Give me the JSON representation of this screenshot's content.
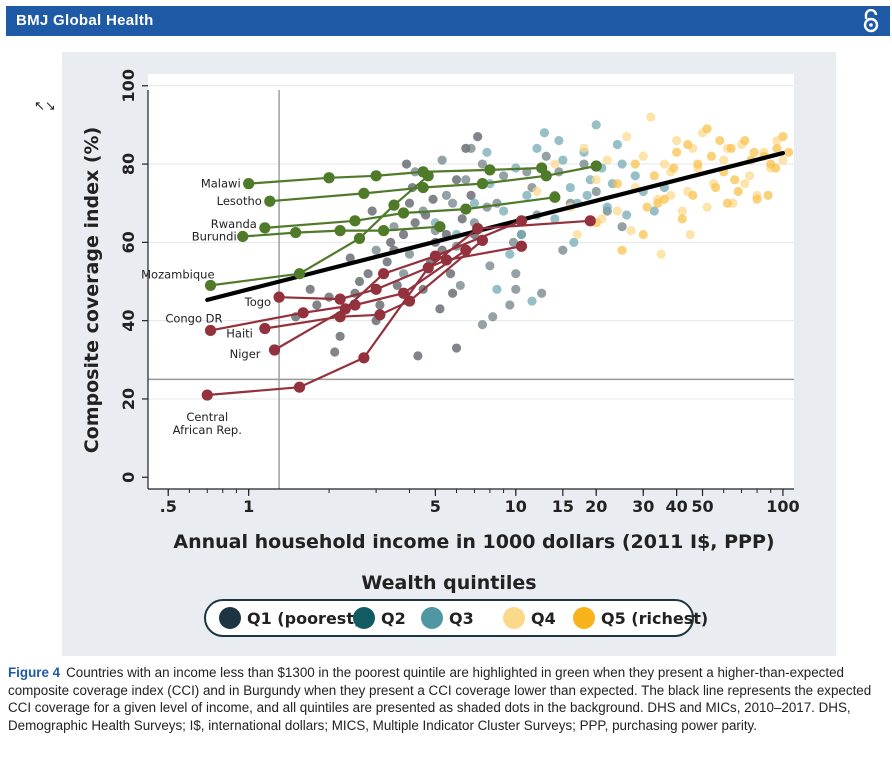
{
  "header": {
    "journal": "BMJ Global Health",
    "open_access_icon": "open-access-lock-icon"
  },
  "resize_icon": "resize-arrows-icon",
  "caption": {
    "label": "Figure 4",
    "text": "Countries with an income less than $1300 in the poorest quintile are highlighted in green when they present a higher-than-expected composite coverage index (CCI) and in Burgundy when they present a CCI coverage lower than expected. The black line represents the expected CCI coverage for a given level of income, and all quintiles are presented as shaded dots in the background. DHS and MICs, 2010–2017. DHS, Demographic Health Surveys; I$, international dollars; MICS, Multiple Indicator Cluster Surveys; PPP, purchasing power parity."
  },
  "chart_data": {
    "type": "scatter",
    "xlabel": "Annual household income in 1000 dollars (2011 I$, PPP)",
    "ylabel": "Composite coverage index (%)",
    "x_scale": "log",
    "xlim": [
      0.42,
      110
    ],
    "ylim": [
      -3,
      103
    ],
    "x_ticks": [
      {
        "v": 0.5,
        "label": ".5"
      },
      {
        "v": 1,
        "label": "1"
      },
      {
        "v": 5,
        "label": "5"
      },
      {
        "v": 10,
        "label": "10"
      },
      {
        "v": 15,
        "label": "15"
      },
      {
        "v": 20,
        "label": "20"
      },
      {
        "v": 30,
        "label": "30"
      },
      {
        "v": 40,
        "label": "40"
      },
      {
        "v": 50,
        "label": "50"
      },
      {
        "v": 100,
        "label": "100"
      }
    ],
    "y_ticks": [
      0,
      20,
      40,
      60,
      80,
      100
    ],
    "grid": true,
    "reference_lines": {
      "x": 1.3,
      "y": 25
    },
    "expected_line": {
      "x": [
        0.7,
        100
      ],
      "y": [
        45.3,
        82.8
      ]
    },
    "legend": {
      "title": "Wealth quintiles",
      "placement": "bottom",
      "items": [
        {
          "label": "Q1 (poorest)",
          "color": "#1c3540"
        },
        {
          "label": "Q2",
          "color": "#135b63"
        },
        {
          "label": "Q3",
          "color": "#4f97a3"
        },
        {
          "label": "Q4",
          "color": "#fcd98a"
        },
        {
          "label": "Q5 (richest)",
          "color": "#f8b21c"
        }
      ]
    },
    "colors": {
      "green": "#4f7a29",
      "burgundy": "#93313c",
      "expected": "#000000",
      "refline": "#999999"
    },
    "highlighted_countries": [
      {
        "name": "Malawi",
        "group": "green",
        "points": [
          [
            1.0,
            75
          ],
          [
            2.0,
            76.5
          ],
          [
            3.0,
            77
          ],
          [
            4.5,
            78
          ],
          [
            8,
            78.5
          ],
          [
            12.5,
            79
          ]
        ]
      },
      {
        "name": "Lesotho",
        "group": "green",
        "points": [
          [
            1.2,
            70.5
          ],
          [
            2.7,
            72.5
          ],
          [
            4.5,
            74
          ],
          [
            7.5,
            75
          ],
          [
            13,
            77
          ],
          [
            20,
            79.5
          ]
        ]
      },
      {
        "name": "Rwanda",
        "group": "green",
        "points": [
          [
            1.15,
            63.7
          ],
          [
            2.5,
            65.5
          ],
          [
            3.8,
            67.5
          ],
          [
            6.5,
            68.5
          ],
          [
            14,
            71.5
          ]
        ]
      },
      {
        "name": "Burundi",
        "group": "green",
        "points": [
          [
            0.95,
            61.5
          ],
          [
            1.5,
            62.5
          ],
          [
            2.2,
            63
          ],
          [
            3.2,
            63
          ],
          [
            5.2,
            64
          ]
        ]
      },
      {
        "name": "Mozambique",
        "group": "green",
        "points": [
          [
            0.72,
            49
          ],
          [
            1.55,
            52
          ],
          [
            2.6,
            61
          ],
          [
            3.5,
            69.5
          ],
          [
            4.7,
            77
          ]
        ]
      },
      {
        "name": "Togo",
        "group": "burgundy",
        "points": [
          [
            1.3,
            46
          ],
          [
            2.2,
            45.5
          ],
          [
            3.0,
            48
          ],
          [
            5.5,
            55.5
          ],
          [
            10.5,
            59
          ]
        ]
      },
      {
        "name": "Congo DR",
        "group": "burgundy",
        "points": [
          [
            0.72,
            37.5
          ],
          [
            1.6,
            42
          ],
          [
            2.5,
            44
          ],
          [
            3.8,
            47
          ],
          [
            6.5,
            58
          ]
        ]
      },
      {
        "name": "Haiti",
        "group": "burgundy",
        "points": [
          [
            1.15,
            38
          ],
          [
            2.2,
            41
          ],
          [
            3.1,
            41.5
          ],
          [
            4.0,
            45
          ],
          [
            7.5,
            60.5
          ]
        ]
      },
      {
        "name": "Niger",
        "group": "burgundy",
        "points": [
          [
            1.25,
            32.5
          ],
          [
            2.3,
            43
          ],
          [
            3.2,
            52
          ],
          [
            5.0,
            56.5
          ],
          [
            10.5,
            65.5
          ]
        ]
      },
      {
        "name": "Central African Rep.",
        "group": "burgundy",
        "points": [
          [
            0.7,
            21
          ],
          [
            1.55,
            23
          ],
          [
            2.7,
            30.5
          ],
          [
            4.7,
            53.5
          ],
          [
            7.2,
            63.5
          ],
          [
            19,
            65.5
          ]
        ]
      }
    ],
    "background_points": {
      "Q1": [
        [
          1.5,
          41
        ],
        [
          1.8,
          44
        ],
        [
          2.0,
          46
        ],
        [
          2.2,
          36
        ],
        [
          2.5,
          47
        ],
        [
          2.8,
          52
        ],
        [
          3.0,
          40
        ],
        [
          3.3,
          55
        ],
        [
          3.5,
          58
        ],
        [
          3.8,
          62
        ],
        [
          4.0,
          70
        ],
        [
          4.2,
          65
        ],
        [
          4.5,
          48
        ],
        [
          4.8,
          55
        ],
        [
          5.0,
          60
        ],
        [
          5.5,
          62
        ],
        [
          5.8,
          47
        ],
        [
          6.0,
          33
        ],
        [
          6.3,
          66
        ],
        [
          6.8,
          72
        ],
        [
          1.7,
          48
        ],
        [
          2.4,
          56
        ],
        [
          3.6,
          49
        ],
        [
          4.3,
          31
        ],
        [
          5.2,
          43
        ],
        [
          2.9,
          68
        ],
        [
          3.9,
          80
        ],
        [
          4.9,
          71
        ],
        [
          6.5,
          84
        ],
        [
          7.2,
          87
        ],
        [
          2.1,
          32
        ],
        [
          4.1,
          74
        ],
        [
          3.1,
          44
        ],
        [
          5.3,
          58
        ],
        [
          6.0,
          76
        ],
        [
          7.0,
          62
        ],
        [
          2.6,
          50
        ],
        [
          3.4,
          60
        ],
        [
          4.6,
          67
        ],
        [
          5.7,
          52
        ]
      ],
      "Q2": [
        [
          3.0,
          58
        ],
        [
          3.5,
          64
        ],
        [
          4.0,
          57
        ],
        [
          4.5,
          68
        ],
        [
          5.0,
          63
        ],
        [
          5.5,
          72
        ],
        [
          6.0,
          59
        ],
        [
          6.5,
          76
        ],
        [
          7.0,
          65
        ],
        [
          7.5,
          80
        ],
        [
          8.0,
          54
        ],
        [
          8.5,
          70
        ],
        [
          9.0,
          77
        ],
        [
          10.0,
          48
        ],
        [
          10.5,
          62
        ],
        [
          11.0,
          78
        ],
        [
          12.0,
          67
        ],
        [
          13.0,
          82
        ],
        [
          14.0,
          72
        ],
        [
          15.0,
          58
        ],
        [
          4.2,
          78
        ],
        [
          5.3,
          81
        ],
        [
          6.8,
          84
        ],
        [
          7.8,
          69
        ],
        [
          9.5,
          44
        ],
        [
          11.5,
          74
        ],
        [
          16.0,
          70
        ],
        [
          18.0,
          80
        ],
        [
          3.8,
          52
        ],
        [
          6.2,
          49
        ],
        [
          8.2,
          41
        ],
        [
          10.0,
          52
        ],
        [
          12.5,
          47
        ],
        [
          20,
          73
        ],
        [
          25,
          64
        ],
        [
          22,
          68
        ],
        [
          7.5,
          39
        ],
        [
          5.8,
          70
        ],
        [
          9.8,
          60
        ],
        [
          14.5,
          78
        ]
      ],
      "Q3": [
        [
          5.0,
          65
        ],
        [
          6.0,
          62
        ],
        [
          7.0,
          70
        ],
        [
          8.0,
          75
        ],
        [
          9.0,
          68
        ],
        [
          10.0,
          79
        ],
        [
          11.0,
          72
        ],
        [
          12.0,
          84
        ],
        [
          13.0,
          77
        ],
        [
          14.0,
          66
        ],
        [
          15.0,
          81
        ],
        [
          16.0,
          74
        ],
        [
          17.0,
          70
        ],
        [
          18.0,
          83
        ],
        [
          19.0,
          76
        ],
        [
          20.0,
          90
        ],
        [
          21.0,
          79
        ],
        [
          22.0,
          69
        ],
        [
          23.0,
          75
        ],
        [
          25.0,
          80
        ],
        [
          8.5,
          48
        ],
        [
          9.5,
          57
        ],
        [
          10.5,
          62
        ],
        [
          11.5,
          45
        ],
        [
          14.5,
          86
        ],
        [
          16.5,
          60
        ],
        [
          18.5,
          72
        ],
        [
          26,
          67
        ],
        [
          28,
          77
        ],
        [
          30,
          73
        ],
        [
          7.8,
          83
        ],
        [
          12.8,
          88
        ],
        [
          24,
          85
        ],
        [
          33,
          68
        ],
        [
          36,
          74
        ]
      ],
      "Q4": [
        [
          12,
          73
        ],
        [
          14,
          80
        ],
        [
          16,
          69
        ],
        [
          18,
          84
        ],
        [
          20,
          76
        ],
        [
          22,
          81
        ],
        [
          24,
          68
        ],
        [
          26,
          87
        ],
        [
          28,
          74
        ],
        [
          30,
          82
        ],
        [
          32,
          92
        ],
        [
          34,
          71
        ],
        [
          36,
          80
        ],
        [
          38,
          78
        ],
        [
          40,
          86
        ],
        [
          42,
          68
        ],
        [
          44,
          73
        ],
        [
          46,
          84
        ],
        [
          48,
          79
        ],
        [
          50,
          88
        ],
        [
          55,
          75
        ],
        [
          60,
          81
        ],
        [
          65,
          70
        ],
        [
          70,
          85
        ],
        [
          75,
          77
        ],
        [
          80,
          72
        ],
        [
          85,
          83
        ],
        [
          90,
          79
        ],
        [
          95,
          86
        ],
        [
          100,
          81
        ],
        [
          17,
          62
        ],
        [
          21,
          66
        ],
        [
          27,
          63
        ],
        [
          35,
          57
        ],
        [
          45,
          62
        ],
        [
          38,
          72
        ],
        [
          52,
          69
        ],
        [
          62,
          84
        ],
        [
          72,
          75
        ]
      ],
      "Q5": [
        [
          20,
          65
        ],
        [
          24,
          75
        ],
        [
          28,
          80
        ],
        [
          30,
          62
        ],
        [
          33,
          77
        ],
        [
          36,
          71
        ],
        [
          40,
          83
        ],
        [
          44,
          85
        ],
        [
          48,
          80
        ],
        [
          52,
          89
        ],
        [
          56,
          74
        ],
        [
          60,
          78
        ],
        [
          64,
          84
        ],
        [
          68,
          73
        ],
        [
          72,
          86
        ],
        [
          76,
          81
        ],
        [
          80,
          71
        ],
        [
          85,
          82
        ],
        [
          90,
          80
        ],
        [
          95,
          84
        ],
        [
          100,
          87
        ],
        [
          105,
          83
        ],
        [
          46,
          72
        ],
        [
          58,
          86
        ],
        [
          66,
          76
        ],
        [
          78,
          83
        ],
        [
          88,
          72
        ],
        [
          34,
          70
        ],
        [
          42,
          66
        ],
        [
          25,
          58
        ],
        [
          31,
          69
        ],
        [
          39,
          79
        ],
        [
          54,
          82
        ],
        [
          62,
          70
        ],
        [
          94,
          79
        ]
      ]
    }
  }
}
